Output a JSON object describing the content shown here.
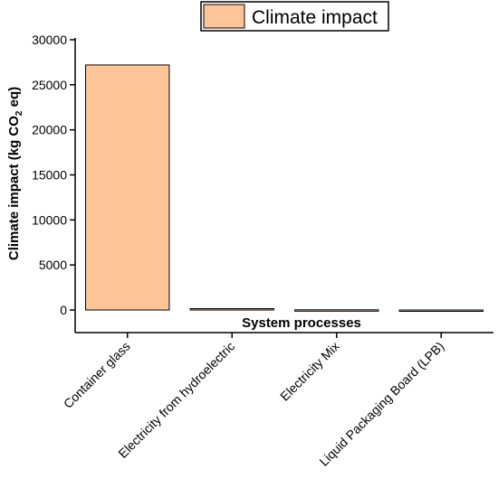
{
  "chart_data": {
    "type": "bar",
    "categories": [
      "Container glass",
      "Electricity from hydroelectric",
      "Electricity Mix",
      "Liquid Packaging Board (LPB)"
    ],
    "series": [
      {
        "name": "Climate impact",
        "values": [
          27200,
          150,
          20,
          -90
        ]
      }
    ],
    "xlabel": "System processes",
    "ylabel_main": "Climate impact (kg CO",
    "ylabel_sub": "2",
    "ylabel_end": " eq)",
    "ylim": [
      -300,
      30000
    ],
    "yticks": [
      0,
      5000,
      10000,
      15000,
      20000,
      25000,
      30000
    ],
    "legend_position": "top",
    "bar_color": "#fdc597",
    "grid": false
  }
}
